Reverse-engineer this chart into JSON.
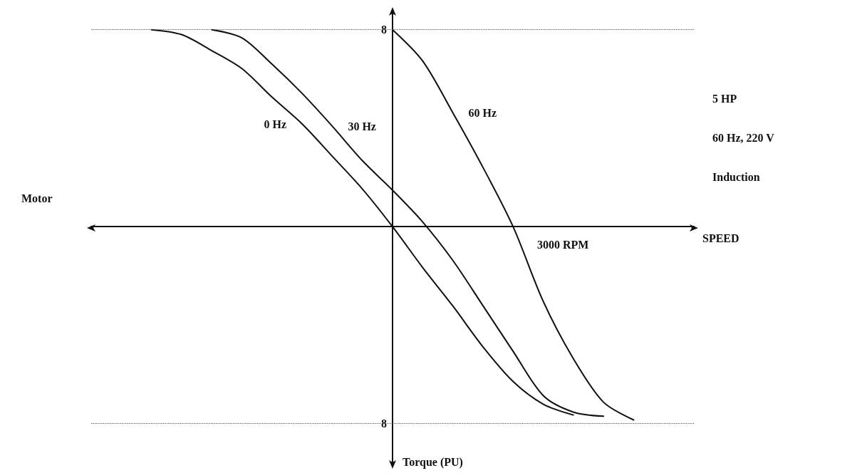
{
  "chart_data": {
    "type": "line",
    "xlabel": "SPEED",
    "categories": [
      null,
      null,
      null,
      null,
      null,
      null,
      null,
      null,
      null,
      null,
      null,
      null,
      null,
      null,
      null,
      null,
      null,
      null,
      null,
      null,
      null
    ],
    "ylim": [
      -9.6,
      8.8
    ],
    "yticks": [
      {
        "value": -8,
        "label": "8"
      },
      {
        "value": 8,
        "label": "8"
      }
    ],
    "grid": false,
    "legend": false,
    "marker": "none",
    "line_style": "solid",
    "annotations": [
      "5 HP",
      "60 Hz, 220 V",
      "Induction",
      "Motor",
      "3000 RPM",
      "Torque (PU)"
    ],
    "ref_lines": [
      {
        "axis": "y",
        "value": 8,
        "label": null,
        "color": "#555555",
        "line_style": "dotted"
      },
      {
        "axis": "y",
        "value": -8,
        "label": null,
        "color": "#555555",
        "line_style": "dotted"
      }
    ],
    "series": [
      {
        "name": "0 Hz",
        "color": "#111111",
        "values": [
          null,
          null,
          8.0,
          7.8,
          7.15,
          6.42,
          5.26,
          4.17,
          2.86,
          1.53,
          0,
          -1.66,
          -3.22,
          -4.88,
          -6.29,
          -7.21,
          -7.65,
          null,
          null,
          null,
          null
        ]
      },
      {
        "name": "30 Hz",
        "color": "#111111",
        "values": [
          null,
          null,
          null,
          null,
          8.0,
          7.67,
          6.6,
          5.41,
          4.08,
          2.68,
          1.48,
          0.19,
          -1.37,
          -3.21,
          -5.06,
          -6.86,
          -7.53,
          -7.7,
          null,
          null,
          null
        ]
      },
      {
        "name": "60 Hz",
        "color": "#111111",
        "values": [
          null,
          null,
          null,
          null,
          null,
          null,
          null,
          null,
          null,
          null,
          8.0,
          6.73,
          4.63,
          2.41,
          0,
          -3.03,
          -5.36,
          -7.13,
          -7.85,
          null,
          null
        ]
      }
    ]
  }
}
